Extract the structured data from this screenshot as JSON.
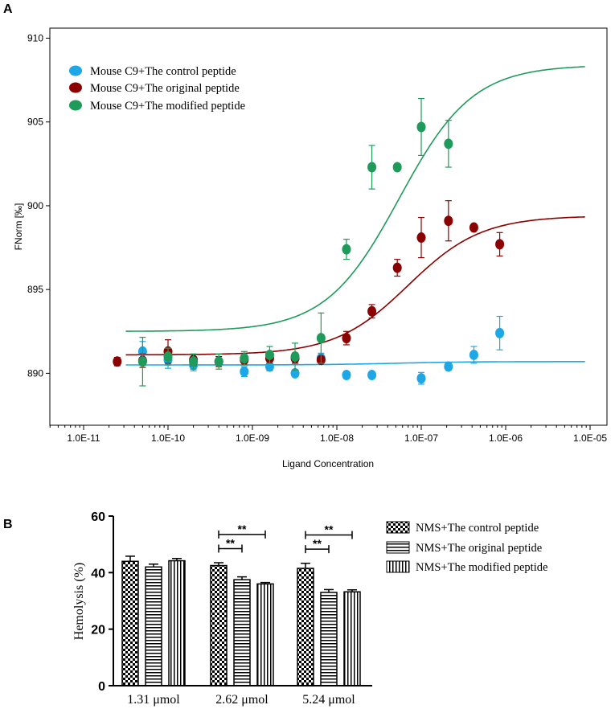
{
  "chart_data": [
    {
      "id": "A",
      "type": "scatter",
      "panel_label": "A",
      "xscale": "log",
      "xlabel": "Ligand Concentration",
      "ylabel": "FNorm [‰]",
      "xlim_log10": [
        -11.4,
        -4.8
      ],
      "ylim": [
        886.9,
        910.6
      ],
      "grid": false,
      "legend_position": "top-left",
      "x_tick_labels": [
        "1.0E-11",
        "1.0E-10",
        "1.0E-09",
        "1.0E-08",
        "1.0E-07",
        "1.0E-06",
        "1.0E-05"
      ],
      "x_tick_exponents": [
        -11,
        -10,
        -9,
        -8,
        -7,
        -6,
        -5
      ],
      "y_ticks": [
        890,
        895,
        900,
        905,
        910
      ],
      "series": [
        {
          "name": "Mouse C9+The control peptide",
          "color": "#1ea7e6",
          "points": [
            {
              "x": 5e-11,
              "y": 891.3,
              "err": 0.6
            },
            {
              "x": 1e-10,
              "y": 890.8,
              "err": 0.5
            },
            {
              "x": 2e-10,
              "y": 890.5,
              "err": 0.35
            },
            {
              "x": 8e-10,
              "y": 890.1,
              "err": 0.3
            },
            {
              "x": 1.6e-09,
              "y": 890.4,
              "err": 0.25
            },
            {
              "x": 3.2e-09,
              "y": 890.0,
              "err": 0.2
            },
            {
              "x": 6.5e-09,
              "y": 890.9,
              "err": 0.3
            },
            {
              "x": 1.3e-08,
              "y": 889.9,
              "err": 0.2
            },
            {
              "x": 2.6e-08,
              "y": 889.9,
              "err": 0.15
            },
            {
              "x": 1e-07,
              "y": 889.7,
              "err": 0.35
            },
            {
              "x": 2.1e-07,
              "y": 890.4,
              "err": 0.15
            },
            {
              "x": 4.2e-07,
              "y": 891.1,
              "err": 0.5
            },
            {
              "x": 8.5e-07,
              "y": 892.4,
              "err": 1.0
            }
          ],
          "fit": {
            "bottom": 890.5,
            "top": 890.7,
            "kd": 5e-08
          }
        },
        {
          "name": "Mouse C9+The original peptide",
          "color": "#8b0000",
          "points": [
            {
              "x": 2.5e-11,
              "y": 890.7,
              "err": 0.25
            },
            {
              "x": 5e-11,
              "y": 890.75,
              "err": 0.4
            },
            {
              "x": 1e-10,
              "y": 891.3,
              "err": 0.7
            },
            {
              "x": 2e-10,
              "y": 890.8,
              "err": 0.35
            },
            {
              "x": 4e-10,
              "y": 890.7,
              "err": 0.3
            },
            {
              "x": 8e-10,
              "y": 890.8,
              "err": 0.3
            },
            {
              "x": 1.6e-09,
              "y": 890.9,
              "err": 0.3
            },
            {
              "x": 3.2e-09,
              "y": 890.9,
              "err": 0.3
            },
            {
              "x": 6.5e-09,
              "y": 890.8,
              "err": 0.2
            },
            {
              "x": 1.3e-08,
              "y": 892.1,
              "err": 0.4
            },
            {
              "x": 2.6e-08,
              "y": 893.7,
              "err": 0.4
            },
            {
              "x": 5.2e-08,
              "y": 896.3,
              "err": 0.5
            },
            {
              "x": 1e-07,
              "y": 898.1,
              "err": 1.2
            },
            {
              "x": 2.1e-07,
              "y": 899.1,
              "err": 1.2
            },
            {
              "x": 4.2e-07,
              "y": 898.7,
              "err": 0.0
            },
            {
              "x": 8.5e-07,
              "y": 897.7,
              "err": 0.7
            }
          ],
          "fit": {
            "bottom": 891.1,
            "top": 899.4,
            "kd": 7e-08
          }
        },
        {
          "name": "Mouse C9+The modified peptide",
          "color": "#1e9b5a",
          "points": [
            {
              "x": 5e-11,
              "y": 890.7,
              "err": 1.45
            },
            {
              "x": 1e-10,
              "y": 891.0,
              "err": 0.5
            },
            {
              "x": 2e-10,
              "y": 890.7,
              "err": 0.45
            },
            {
              "x": 4e-10,
              "y": 890.7,
              "err": 0.45
            },
            {
              "x": 8e-10,
              "y": 890.9,
              "err": 0.4
            },
            {
              "x": 1.6e-09,
              "y": 891.1,
              "err": 0.5
            },
            {
              "x": 3.2e-09,
              "y": 891.0,
              "err": 0.8
            },
            {
              "x": 6.5e-09,
              "y": 892.1,
              "err": 1.5
            },
            {
              "x": 1.3e-08,
              "y": 897.4,
              "err": 0.6
            },
            {
              "x": 2.6e-08,
              "y": 902.3,
              "err": 1.3
            },
            {
              "x": 5.2e-08,
              "y": 902.3,
              "err": 0.0
            },
            {
              "x": 1e-07,
              "y": 904.7,
              "err": 1.7
            },
            {
              "x": 2.1e-07,
              "y": 903.7,
              "err": 1.4
            }
          ],
          "fit": {
            "bottom": 892.5,
            "top": 908.4,
            "kd": 5.5e-08
          }
        }
      ]
    },
    {
      "id": "B",
      "type": "bar",
      "panel_label": "B",
      "ylabel": "Hemolysis (%)",
      "ylim": [
        0,
        60
      ],
      "y_ticks": [
        0,
        20,
        40,
        60
      ],
      "categories": [
        "1.31 μmol",
        "2.62 μmol",
        "5.24 μmol"
      ],
      "legend_position": "right",
      "series": [
        {
          "name": "NMS+The control peptide",
          "pattern": "checker",
          "values": [
            44.0,
            42.5,
            41.5
          ],
          "err": [
            1.8,
            1.0,
            1.8
          ]
        },
        {
          "name": "NMS+The original peptide",
          "pattern": "horizontal",
          "values": [
            42.0,
            37.5,
            33.0
          ],
          "err": [
            1.0,
            1.0,
            1.0
          ]
        },
        {
          "name": "NMS+The modified peptide",
          "pattern": "vertical",
          "values": [
            44.2,
            36.0,
            33.2
          ],
          "err": [
            0.8,
            0.5,
            0.7
          ]
        }
      ],
      "significance": [
        {
          "category_index": 1,
          "from_series": 0,
          "to_series": 1,
          "label": "**"
        },
        {
          "category_index": 1,
          "from_series": 0,
          "to_series": 2,
          "label": "**"
        },
        {
          "category_index": 2,
          "from_series": 0,
          "to_series": 1,
          "label": "**"
        },
        {
          "category_index": 2,
          "from_series": 0,
          "to_series": 2,
          "label": "**"
        }
      ]
    }
  ]
}
